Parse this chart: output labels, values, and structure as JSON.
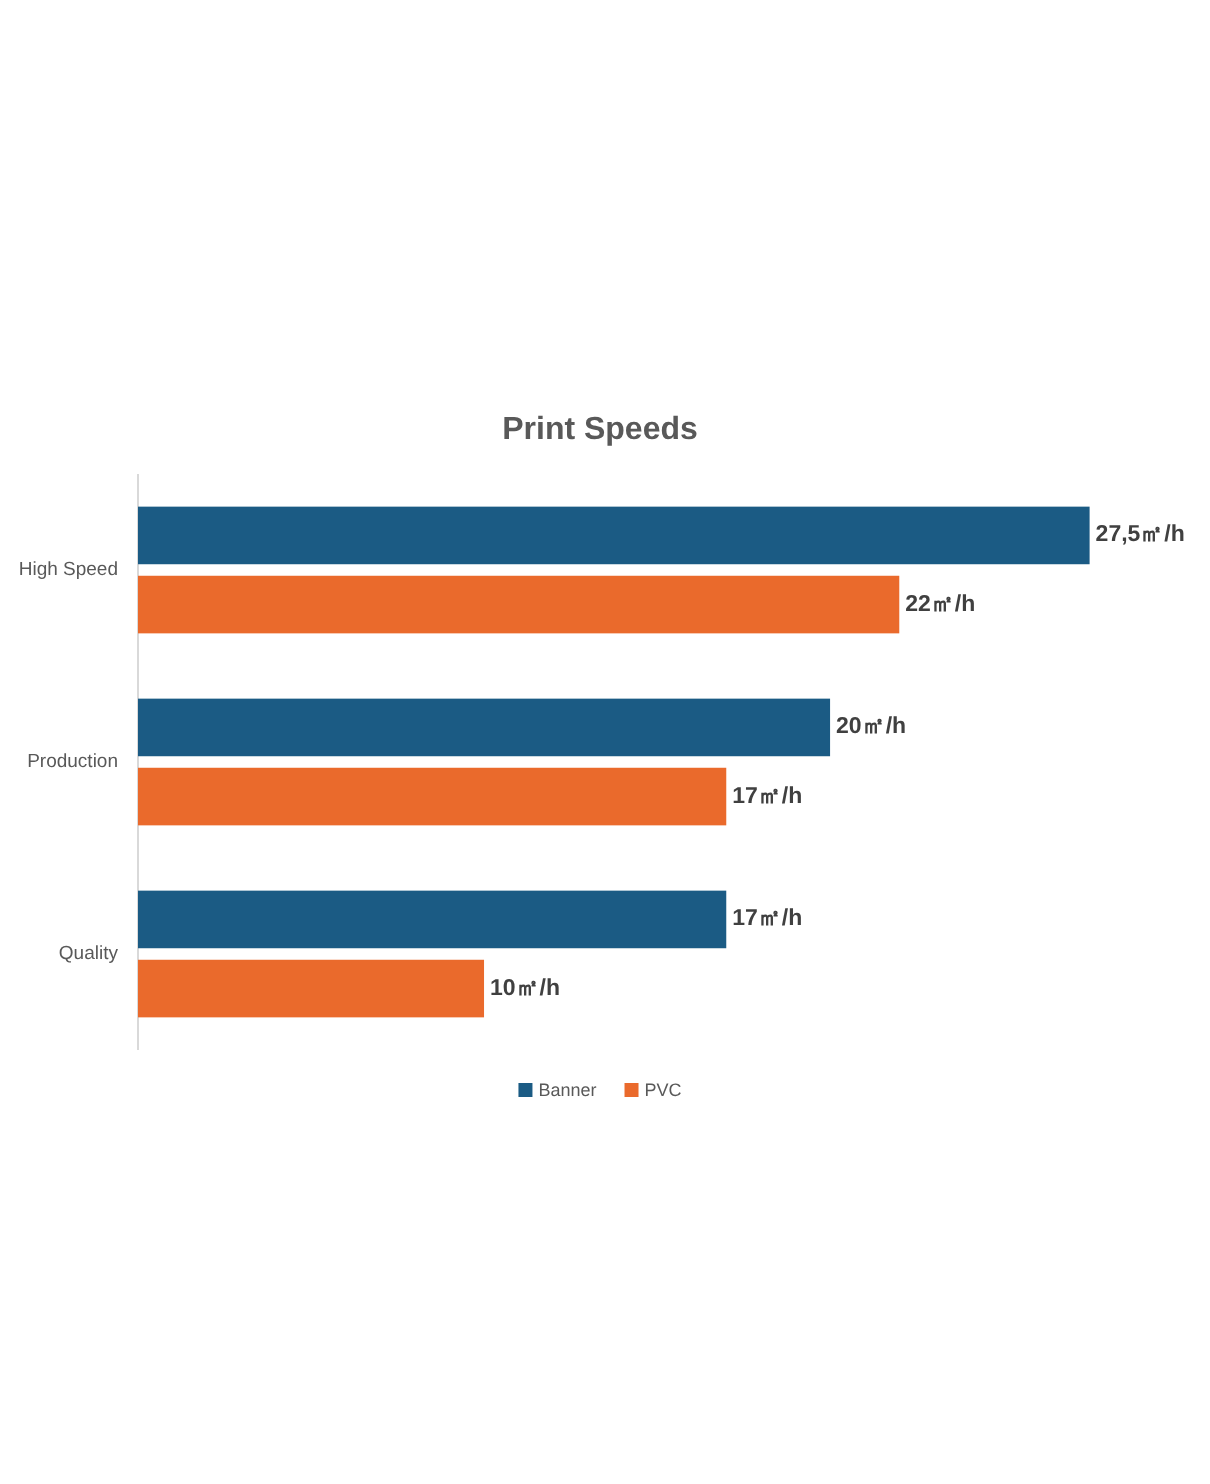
{
  "chart_data": {
    "type": "bar",
    "orientation": "horizontal",
    "title": "Print Speeds",
    "categories": [
      "High Speed",
      "Production",
      "Quality"
    ],
    "series": [
      {
        "name": "Banner",
        "color": "#1b5b84",
        "values": [
          27.5,
          20,
          17
        ],
        "value_labels": [
          "27,5㎡/h",
          "20㎡/h",
          "17㎡/h"
        ]
      },
      {
        "name": "PVC",
        "color": "#ea6a2c",
        "values": [
          22,
          17,
          10
        ],
        "value_labels": [
          "22㎡/h",
          "17㎡/h",
          "10㎡/h"
        ]
      }
    ],
    "legend": "bottom",
    "tick_labels": "y"
  }
}
